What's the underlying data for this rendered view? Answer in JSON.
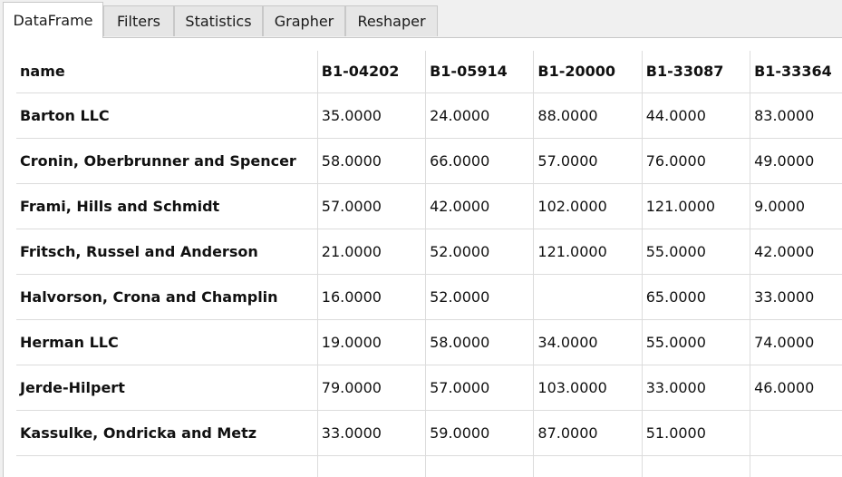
{
  "tabs": [
    {
      "label": "DataFrame",
      "active": true
    },
    {
      "label": "Filters",
      "active": false
    },
    {
      "label": "Statistics",
      "active": false
    },
    {
      "label": "Grapher",
      "active": false
    },
    {
      "label": "Reshaper",
      "active": false
    }
  ],
  "table": {
    "columns": [
      "name",
      "B1-04202",
      "B1-05914",
      "B1-20000",
      "B1-33087",
      "B1-33364"
    ],
    "rows": [
      [
        "Barton LLC",
        "35.0000",
        "24.0000",
        "88.0000",
        "44.0000",
        "83.0000"
      ],
      [
        "Cronin, Oberbrunner and Spencer",
        "58.0000",
        "66.0000",
        "57.0000",
        "76.0000",
        "49.0000"
      ],
      [
        "Frami, Hills and Schmidt",
        "57.0000",
        "42.0000",
        "102.0000",
        "121.0000",
        "9.0000"
      ],
      [
        "Fritsch, Russel and Anderson",
        "21.0000",
        "52.0000",
        "121.0000",
        "55.0000",
        "42.0000"
      ],
      [
        "Halvorson, Crona and Champlin",
        "16.0000",
        "52.0000",
        "",
        "65.0000",
        "33.0000"
      ],
      [
        "Herman LLC",
        "19.0000",
        "58.0000",
        "34.0000",
        "55.0000",
        "74.0000"
      ],
      [
        "Jerde-Hilpert",
        "79.0000",
        "57.0000",
        "103.0000",
        "33.0000",
        "46.0000"
      ],
      [
        "Kassulke, Ondricka and Metz",
        "33.0000",
        "59.0000",
        "87.0000",
        "51.0000",
        ""
      ]
    ]
  }
}
